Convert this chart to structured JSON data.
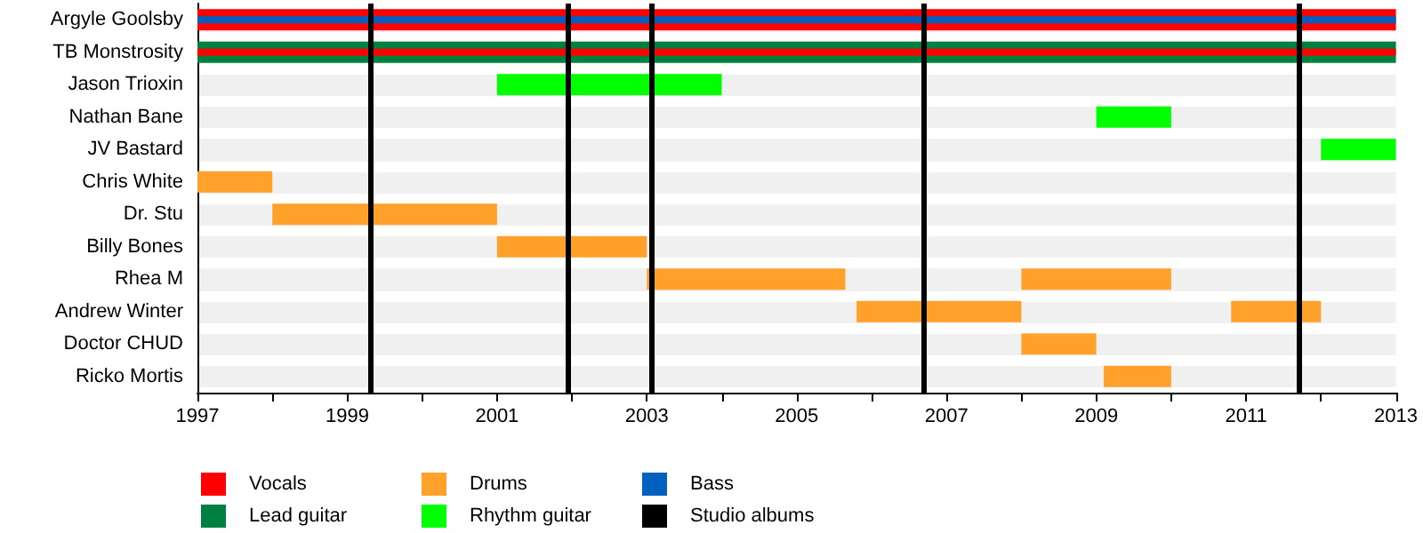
{
  "chart_data": {
    "type": "bar",
    "orientation": "horizontal",
    "categories": [
      "Argyle Goolsby",
      "TB Monstrosity",
      "Jason Trioxin",
      "Nathan Bane",
      "JV Bastard",
      "Chris White",
      "Dr. Stu",
      "Billy Bones",
      "Rhea M",
      "Andrew Winter",
      "Doctor CHUD",
      "Ricko Mortis"
    ],
    "series": [
      {
        "name": "Vocals",
        "color": "#ff0000",
        "values": [
          16,
          null,
          null,
          null,
          null,
          null,
          null,
          null,
          null,
          null,
          null,
          null
        ],
        "base": [
          1997,
          null,
          null,
          null,
          null,
          null,
          null,
          null,
          null,
          null,
          null,
          null
        ]
      },
      {
        "name": "Lead guitar",
        "color": "#008040",
        "values": [
          null,
          16,
          null,
          null,
          null,
          null,
          null,
          null,
          null,
          null,
          null,
          null
        ],
        "base": [
          null,
          1997,
          null,
          null,
          null,
          null,
          null,
          null,
          null,
          null,
          null,
          null
        ]
      },
      {
        "name": "Drums",
        "color": "#ffa12a",
        "values": [
          null,
          null,
          null,
          null,
          null,
          1,
          3,
          2,
          2.65,
          2.2,
          1,
          0.9
        ],
        "base": [
          null,
          null,
          null,
          null,
          null,
          1997,
          1998,
          2001,
          2003,
          2005.8,
          2008,
          2009.1
        ]
      },
      {
        "name": "Rhythm guitar",
        "color": "#00ff00",
        "values": [
          null,
          null,
          3,
          1,
          1,
          null,
          null,
          null,
          null,
          null,
          null,
          null
        ],
        "base": [
          null,
          null,
          2001,
          2009,
          2012,
          null,
          null,
          null,
          null,
          null,
          null,
          null
        ]
      },
      {
        "name": "Bass",
        "color": "#0060c0",
        "values": [
          16,
          null,
          null,
          null,
          null,
          null,
          null,
          null,
          null,
          null,
          null,
          null
        ],
        "base": [
          1997,
          null,
          null,
          null,
          null,
          null,
          null,
          null,
          null,
          null,
          null,
          null
        ]
      },
      {
        "color": "#ff0000",
        "values": [
          null,
          16,
          null,
          null,
          null,
          null,
          null,
          null,
          null,
          null,
          null,
          null
        ],
        "base": [
          null,
          1997,
          null,
          null,
          null,
          null,
          null,
          null,
          null,
          null,
          null,
          null
        ]
      },
      {
        "color": "#ffa12a",
        "values": [
          null,
          null,
          null,
          null,
          null,
          null,
          null,
          null,
          2,
          1.2,
          null,
          null
        ],
        "base": [
          null,
          null,
          null,
          null,
          null,
          null,
          null,
          null,
          2008,
          2010.8,
          null,
          null
        ]
      }
    ],
    "xlim": [
      1997,
      2013
    ],
    "xticks": [
      1997,
      {
        "value": 1998,
        "label": null
      },
      1999,
      {
        "value": 2000,
        "label": null
      },
      2001,
      {
        "value": 2002,
        "label": null
      },
      2003,
      {
        "value": 2004,
        "label": null
      },
      2005,
      {
        "value": 2006,
        "label": null
      },
      2007,
      {
        "value": 2008,
        "label": null
      },
      2009,
      {
        "value": 2010,
        "label": null
      },
      2011,
      {
        "value": 2012,
        "label": null
      },
      2013
    ],
    "ref_lines": [
      {
        "axis": "x",
        "value": 1999.3,
        "label": "Studio albums",
        "color": "#000000"
      },
      {
        "axis": "x",
        "value": 2001.95,
        "color": "#000000"
      },
      {
        "axis": "x",
        "value": 2003.05,
        "color": "#000000"
      },
      {
        "axis": "x",
        "value": 2006.7,
        "color": "#000000"
      },
      {
        "axis": "x",
        "value": 2011.7,
        "color": "#000000"
      }
    ],
    "legend": "bottom"
  }
}
